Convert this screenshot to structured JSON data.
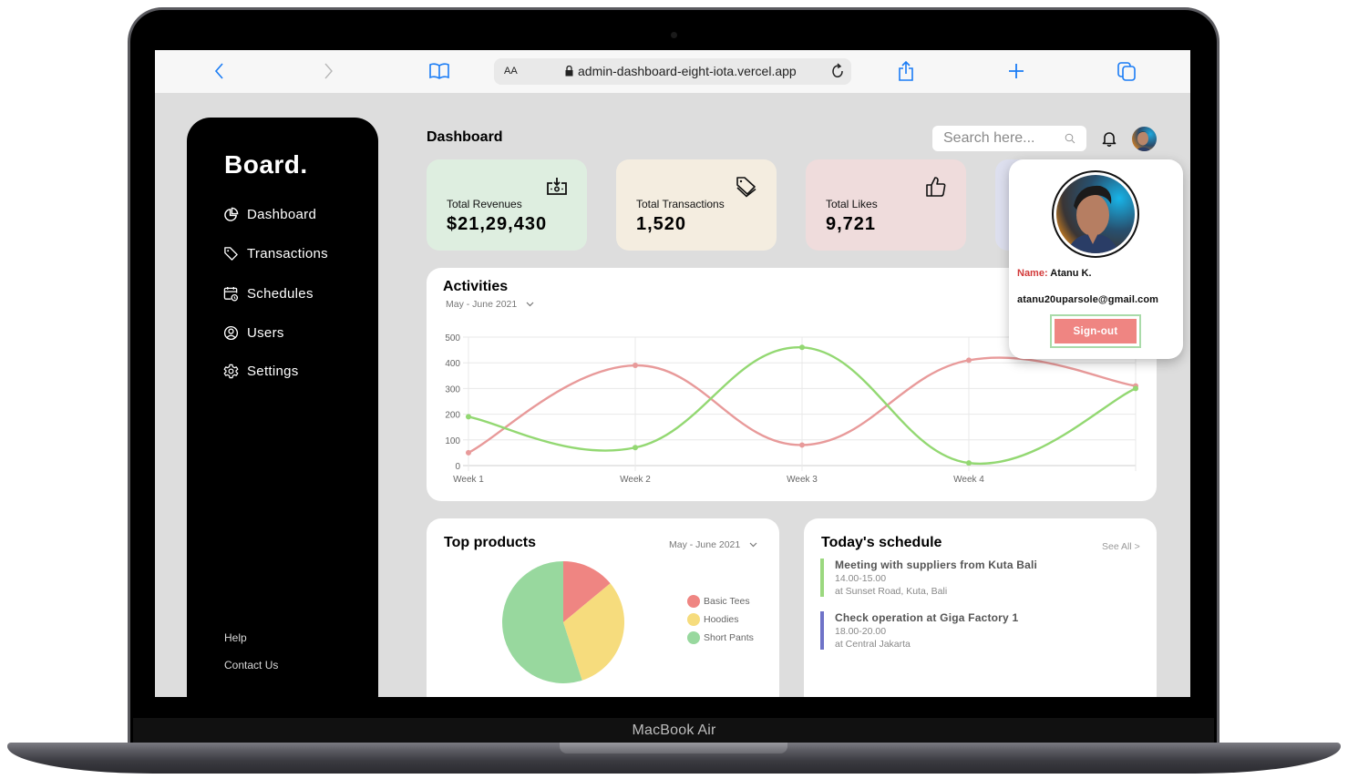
{
  "device": {
    "label": "MacBook Air"
  },
  "browser": {
    "url": "admin-dashboard-eight-iota.vercel.app",
    "reader_label": "AA",
    "icons": [
      "back-icon",
      "forward-icon",
      "bookmarks-icon",
      "lock-icon",
      "reload-icon",
      "share-icon",
      "new-tab-icon",
      "tabs-icon"
    ]
  },
  "sidebar": {
    "brand": "Board.",
    "items": [
      {
        "label": "Dashboard",
        "icon": "pie-chart-icon"
      },
      {
        "label": "Transactions",
        "icon": "tag-icon"
      },
      {
        "label": "Schedules",
        "icon": "calendar-clock-icon"
      },
      {
        "label": "Users",
        "icon": "user-circle-icon"
      },
      {
        "label": "Settings",
        "icon": "gear-icon"
      }
    ],
    "footer": {
      "help": "Help",
      "contact": "Contact Us"
    }
  },
  "header": {
    "title": "Dashboard",
    "search_placeholder": "Search here...",
    "icons": [
      "search-icon",
      "bell-icon",
      "avatar"
    ]
  },
  "cards": [
    {
      "label": "Total Revenues",
      "value": "$21,29,430",
      "bg": "#deeee0",
      "icon": "money-deposit-icon"
    },
    {
      "label": "Total Transactions",
      "value": "1,520",
      "bg": "#f4ede0",
      "icon": "tag-icon"
    },
    {
      "label": "Total Likes",
      "value": "9,721",
      "bg": "#efdcdc",
      "icon": "thumbs-up-icon"
    },
    {
      "label": "",
      "value": "",
      "bg": "#dddfee",
      "icon": ""
    }
  ],
  "activities": {
    "title": "Activities",
    "range": "May - June 2021"
  },
  "top_products": {
    "title": "Top products",
    "range": "May - June 2021"
  },
  "schedule": {
    "title": "Today's schedule",
    "see_all": "See All >",
    "items": [
      {
        "title": "Meeting with suppliers from Kuta Bali",
        "time": "14.00-15.00",
        "location": "at Sunset Road, Kuta, Bali",
        "color": "#9bd87f"
      },
      {
        "title": "Check operation at Giga Factory 1",
        "time": "18.00-20.00",
        "location": "at Central Jakarta",
        "color": "#6f73c8"
      }
    ]
  },
  "profile_popup": {
    "name_key": "Name:",
    "name_value": "Atanu K.",
    "email": "atanu20uparsole@gmail.com",
    "signout_label": "Sign-out"
  },
  "colors": {
    "accent_red": "#ef8582",
    "accent_green": "#9bd87f",
    "accent_yellow": "#f6dc7d",
    "pie_green": "#98d89e",
    "sidebar_bg": "#000000",
    "screen_bg": "#dddddd"
  },
  "chart_data": [
    {
      "type": "line",
      "title": "Activities",
      "subtitle": "May - June 2021",
      "categories": [
        "Week 1",
        "Week 2",
        "Week 3",
        "Week 4",
        ""
      ],
      "series": [
        {
          "name": "Series 1 (red)",
          "color": "#e89a9a",
          "values": [
            50,
            390,
            80,
            410,
            310
          ]
        },
        {
          "name": "Series 2 (green)",
          "color": "#93d872",
          "values": [
            190,
            70,
            460,
            10,
            300
          ]
        }
      ],
      "xlabel": "",
      "ylabel": "",
      "ylim": [
        0,
        500
      ],
      "yticks": [
        0,
        100,
        200,
        300,
        400,
        500
      ],
      "grid": true,
      "legend": "none",
      "smooth": true
    },
    {
      "type": "pie",
      "title": "Top products",
      "subtitle": "May - June 2021",
      "categories": [
        "Basic Tees",
        "Hoodies",
        "Short Pants"
      ],
      "values": [
        14,
        31,
        55
      ],
      "colors": [
        "#ef8582",
        "#f6dc7d",
        "#98d89e"
      ],
      "legend": "right"
    }
  ]
}
